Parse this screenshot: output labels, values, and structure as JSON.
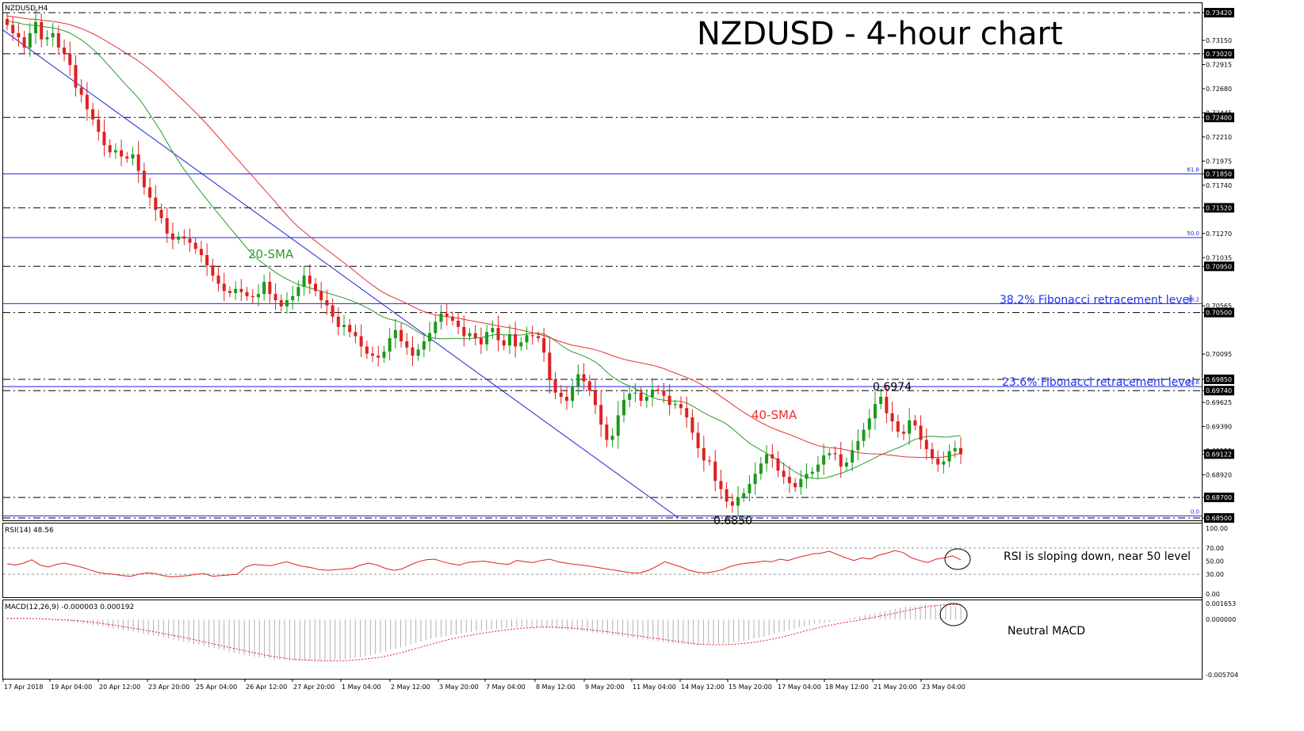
{
  "symbol_label": "NZDUSD,H4",
  "title": "NZDUSD - 4-hour chart",
  "colors": {
    "background": "#ffffff",
    "bull": "#1a9a1a",
    "bear": "#e02020",
    "sma20": "#2a9a2a",
    "sma40": "#e83030",
    "trendline": "#2222dd",
    "fib": "#2222dd",
    "hlevel": "#000000",
    "rsi": "#e02020",
    "macd": "#e02020",
    "text_blue": "#2233ee"
  },
  "price_axis": {
    "min": 0.685,
    "max": 0.7342,
    "ticks": [
      "0.73420",
      "0.73150",
      "0.73020",
      "0.72915",
      "0.72680",
      "0.72445",
      "0.72400",
      "0.72210",
      "0.71975",
      "0.71850",
      "0.71740",
      "0.71520",
      "0.71270",
      "0.71035",
      "0.70950",
      "0.70565",
      "0.70500",
      "0.70095",
      "0.69850",
      "0.69740",
      "0.69625",
      "0.69390",
      "0.69155",
      "0.69122",
      "0.68920",
      "0.68700",
      "0.68500"
    ],
    "highlighted_ticks": [
      "0.73420",
      "0.73020",
      "0.72400",
      "0.71850",
      "0.71520",
      "0.70950",
      "0.70500",
      "0.69850",
      "0.69740",
      "0.69122",
      "0.68700",
      "0.68500"
    ]
  },
  "levels": [
    0.7342,
    0.7302,
    0.724,
    0.7152,
    0.7095,
    0.705,
    0.6985,
    0.6974,
    0.687,
    0.685
  ],
  "fibonacci": [
    {
      "tag": "61.8",
      "price": 0.7185
    },
    {
      "tag": "50.0",
      "price": 0.7123
    },
    {
      "tag": "38.2",
      "price": 0.70587
    },
    {
      "tag": "23.6",
      "price": 0.69779
    },
    {
      "tag": "0.0",
      "price": 0.6852
    }
  ],
  "annotations": {
    "fib382": "38.2% Fibonacci retracement level",
    "fib236": "23.6% Fibonacci retracement level",
    "sma20": "20-SMA",
    "sma40": "40-SMA",
    "high": "0.6974",
    "low": "0.6850",
    "rsi_note": "RSI is sloping down, near 50 level",
    "macd_note": "Neutral MACD"
  },
  "rsi": {
    "label": "RSI(14) 48.56",
    "ticks": [
      "100.00",
      "70.00",
      "50.00",
      "30.00",
      "0.00"
    ],
    "levels": [
      70,
      30
    ]
  },
  "macd": {
    "label": "MACD(12,26,9) -0.000003 0.000192",
    "ticks": [
      "0.001653",
      "0.000000",
      "-0.005704"
    ],
    "min": -0.005704,
    "max": 0.001653
  },
  "x_axis": {
    "labels": [
      "17 Apr 2018",
      "19 Apr 04:00",
      "20 Apr 12:00",
      "23 Apr 20:00",
      "25 Apr 04:00",
      "26 Apr 12:00",
      "27 Apr 20:00",
      "1 May 04:00",
      "2 May 12:00",
      "3 May 20:00",
      "7 May 04:00",
      "8 May 12:00",
      "9 May 20:00",
      "11 May 04:00",
      "14 May 12:00",
      "15 May 20:00",
      "17 May 04:00",
      "18 May 12:00",
      "21 May 20:00",
      "23 May 04:00"
    ]
  },
  "chart_data": {
    "type": "candlestick",
    "timeframe": "4-hour",
    "closes": [
      0.733,
      0.7322,
      0.7318,
      0.7308,
      0.7322,
      0.7333,
      0.7316,
      0.7318,
      0.7322,
      0.7308,
      0.7302,
      0.7291,
      0.7269,
      0.7262,
      0.7248,
      0.7238,
      0.7226,
      0.7213,
      0.7206,
      0.7208,
      0.7202,
      0.72,
      0.7204,
      0.7188,
      0.7172,
      0.7162,
      0.715,
      0.7142,
      0.7127,
      0.7121,
      0.7124,
      0.7122,
      0.7118,
      0.7112,
      0.7106,
      0.7096,
      0.7086,
      0.7078,
      0.7071,
      0.7069,
      0.7073,
      0.707,
      0.7066,
      0.7065,
      0.7068,
      0.708,
      0.7068,
      0.7062,
      0.7056,
      0.7062,
      0.7066,
      0.7075,
      0.7086,
      0.7078,
      0.7071,
      0.7062,
      0.7057,
      0.7046,
      0.7036,
      0.7038,
      0.7031,
      0.7027,
      0.7017,
      0.701,
      0.7008,
      0.7006,
      0.7012,
      0.7025,
      0.7033,
      0.7022,
      0.7016,
      0.7008,
      0.7014,
      0.7022,
      0.703,
      0.7041,
      0.7049,
      0.7046,
      0.7042,
      0.7036,
      0.7027,
      0.703,
      0.7025,
      0.7019,
      0.7031,
      0.7035,
      0.7023,
      0.7018,
      0.7029,
      0.7017,
      0.7021,
      0.7028,
      0.7027,
      0.7025,
      0.7011,
      0.6985,
      0.6972,
      0.6968,
      0.6964,
      0.6978,
      0.699,
      0.6983,
      0.6974,
      0.696,
      0.6941,
      0.6926,
      0.693,
      0.695,
      0.6965,
      0.6971,
      0.6972,
      0.6964,
      0.6968,
      0.6975,
      0.6974,
      0.6969,
      0.696,
      0.6961,
      0.6957,
      0.6948,
      0.6933,
      0.6918,
      0.6906,
      0.6905,
      0.6886,
      0.6878,
      0.6866,
      0.6862,
      0.687,
      0.6874,
      0.6883,
      0.6893,
      0.6903,
      0.6912,
      0.6908,
      0.6896,
      0.689,
      0.6884,
      0.688,
      0.6888,
      0.6893,
      0.6895,
      0.6902,
      0.6911,
      0.6913,
      0.6912,
      0.69,
      0.6904,
      0.6916,
      0.6925,
      0.6936,
      0.6947,
      0.6961,
      0.6968,
      0.6952,
      0.6944,
      0.6934,
      0.6932,
      0.6945,
      0.694,
      0.6926,
      0.6917,
      0.6908,
      0.6902,
      0.6905,
      0.6915,
      0.6918,
      0.6912
    ],
    "sma20_endpoints": {
      "start": 0.7338,
      "end": 0.6914
    },
    "sma40_endpoints": {
      "start": 0.7348,
      "end": 0.6912
    },
    "trendline": {
      "from": 0.7325,
      "to": 0.685
    },
    "rsi_values": [
      46,
      44,
      47,
      52,
      44,
      41,
      45,
      47,
      44,
      41,
      37,
      33,
      31,
      30,
      28,
      27,
      30,
      32,
      31,
      28,
      26,
      27,
      28,
      30,
      31,
      27,
      28,
      29,
      30,
      41,
      45,
      44,
      43,
      46,
      49,
      45,
      42,
      40,
      37,
      36,
      37,
      38,
      39,
      44,
      47,
      44,
      39,
      36,
      38,
      44,
      49,
      52,
      53,
      49,
      46,
      44,
      48,
      49,
      50,
      48,
      46,
      45,
      51,
      49,
      48,
      51,
      53,
      49,
      47,
      45,
      44,
      42,
      40,
      38,
      36,
      34,
      32,
      32,
      36,
      42,
      49,
      45,
      41,
      36,
      33,
      32,
      34,
      37,
      42,
      45,
      47,
      48,
      50,
      49,
      53,
      51,
      55,
      58,
      61,
      62,
      65,
      60,
      55,
      51,
      55,
      53,
      59,
      62,
      66,
      63,
      55,
      51,
      48,
      53,
      55,
      58,
      52
    ],
    "macd_values": [
      0.00012,
      5e-05,
      -2e-05,
      -0.00015,
      -0.00035,
      -0.0006,
      -0.0009,
      -0.0012,
      -0.00155,
      -0.0019,
      -0.0023,
      -0.0027,
      -0.0031,
      -0.0035,
      -0.00385,
      -0.0041,
      -0.0042,
      -0.00428,
      -0.00425,
      -0.0041,
      -0.0039,
      -0.0035,
      -0.003,
      -0.0025,
      -0.002,
      -0.00165,
      -0.00135,
      -0.0011,
      -0.0009,
      -0.00078,
      -0.0008,
      -0.0009,
      -0.00108,
      -0.0013,
      -0.00155,
      -0.0018,
      -0.00205,
      -0.0023,
      -0.00255,
      -0.00262,
      -0.00255,
      -0.0024,
      -0.0021,
      -0.0017,
      -0.0012,
      -0.00075,
      -0.0004,
      -0.0001,
      0.00025,
      0.0006,
      0.001,
      0.00135,
      0.00155,
      0.0015,
      0.00125
    ]
  }
}
